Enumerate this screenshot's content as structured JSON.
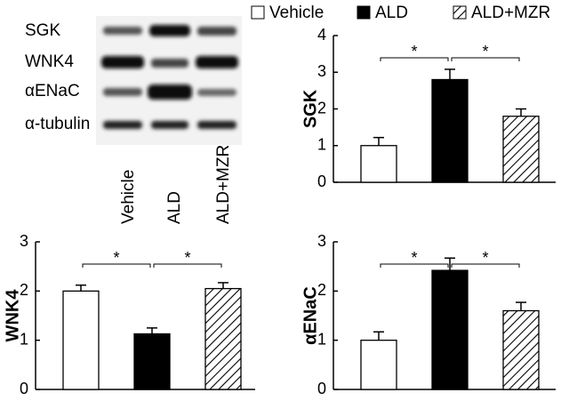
{
  "blot": {
    "rows": [
      "SGK",
      "WNK4",
      "αENaC",
      "α-tubulin"
    ],
    "lanes": [
      "Vehicle",
      "ALD",
      "ALD+MZR"
    ]
  },
  "legend": [
    {
      "name": "Vehicle",
      "fill": "#ffffff"
    },
    {
      "name": "ALD",
      "fill": "#000000"
    },
    {
      "name": "ALD+MZR",
      "fill": "hatch"
    }
  ],
  "chart_data": [
    {
      "type": "bar",
      "ylabel": "SGK",
      "values": [
        1.0,
        2.8,
        1.8
      ],
      "errors": [
        0.22,
        0.28,
        0.2
      ],
      "ylim": [
        0,
        4
      ],
      "yticks": [
        0,
        1,
        2,
        3,
        4
      ],
      "significance": [
        {
          "pair": [
            0,
            1
          ],
          "label": "*"
        },
        {
          "pair": [
            1,
            2
          ],
          "label": "*"
        }
      ]
    },
    {
      "type": "bar",
      "ylabel": "WNK4",
      "values": [
        2.0,
        1.13,
        2.05
      ],
      "errors": [
        0.12,
        0.12,
        0.12
      ],
      "ylim": [
        0,
        3
      ],
      "yticks": [
        0,
        1,
        2,
        3
      ],
      "significance": [
        {
          "pair": [
            0,
            1
          ],
          "label": "*"
        },
        {
          "pair": [
            1,
            2
          ],
          "label": "*"
        }
      ]
    },
    {
      "type": "bar",
      "ylabel": "αENaC",
      "values": [
        1.0,
        2.42,
        1.6
      ],
      "errors": [
        0.17,
        0.25,
        0.17
      ],
      "ylim": [
        0,
        3
      ],
      "yticks": [
        0,
        1,
        2,
        3
      ],
      "significance": [
        {
          "pair": [
            0,
            1
          ],
          "label": "*"
        },
        {
          "pair": [
            1,
            2
          ],
          "label": "*"
        }
      ]
    }
  ]
}
